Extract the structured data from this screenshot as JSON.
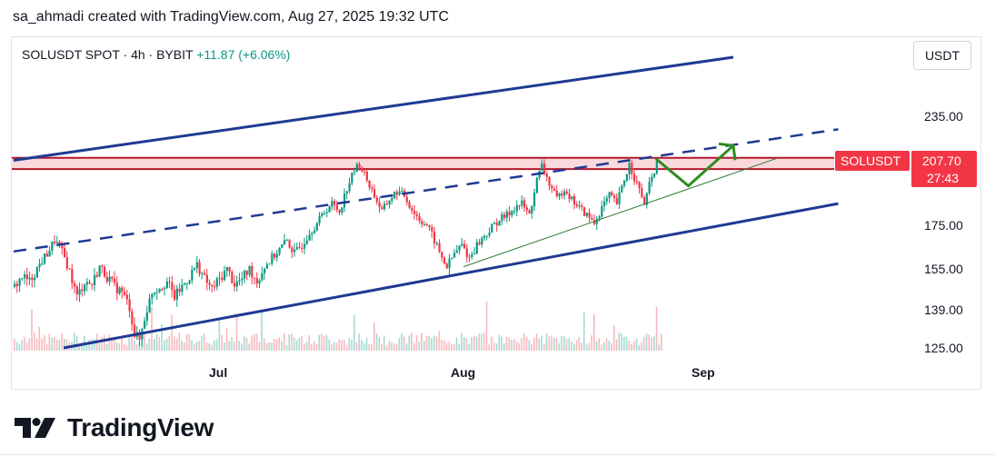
{
  "header": {
    "attribution": "sa_ahmadi created with TradingView.com, Aug 27, 2025 19:32 UTC"
  },
  "legend": {
    "symbol": "SOLUSDT SPOT · 4h · BYBIT",
    "change": "+11.87 (+6.06%)"
  },
  "currency_button": "USDT",
  "price_tag": {
    "symbol": "SOLUSDT",
    "price": "207.70",
    "countdown": "27:43"
  },
  "branding": {
    "wordmark": "TradingView"
  },
  "colors": {
    "channel": "#1f3a93",
    "resistance": "#b2182b",
    "resistance_fill": "#f9d9dc",
    "support_trend": "#2e7d32",
    "projection": "#2e8b1f",
    "up_candle": "#089981",
    "down_candle": "#f23645",
    "tag_bg": "#f23645"
  },
  "chart_data": {
    "type": "candlestick",
    "symbol": "SOLUSDT",
    "interval": "4h",
    "exchange": "BYBIT",
    "y_ticks": [
      235,
      175,
      155,
      139,
      125
    ],
    "y_tick_labels": [
      "235.00",
      "175.00",
      "155.00",
      "139.00",
      "125.00"
    ],
    "x_ticks": [
      "Jul",
      "Aug",
      "Sep"
    ],
    "price_path": [
      [
        0,
        148
      ],
      [
        3,
        152
      ],
      [
        6,
        150
      ],
      [
        10,
        157
      ],
      [
        13,
        162
      ],
      [
        16,
        168
      ],
      [
        18,
        165
      ],
      [
        20,
        160
      ],
      [
        22,
        154
      ],
      [
        25,
        144
      ],
      [
        28,
        150
      ],
      [
        31,
        149
      ],
      [
        34,
        156
      ],
      [
        37,
        152
      ],
      [
        40,
        148
      ],
      [
        43,
        146
      ],
      [
        46,
        140
      ],
      [
        48,
        130
      ],
      [
        50,
        128
      ],
      [
        52,
        136
      ],
      [
        55,
        146
      ],
      [
        58,
        148
      ],
      [
        61,
        150
      ],
      [
        64,
        144
      ],
      [
        67,
        148
      ],
      [
        70,
        152
      ],
      [
        73,
        157
      ],
      [
        76,
        151
      ],
      [
        79,
        147
      ],
      [
        82,
        151
      ],
      [
        85,
        155
      ],
      [
        88,
        149
      ],
      [
        91,
        151
      ],
      [
        94,
        155
      ],
      [
        97,
        150
      ],
      [
        100,
        156
      ],
      [
        103,
        160
      ],
      [
        106,
        164
      ],
      [
        109,
        168
      ],
      [
        112,
        162
      ],
      [
        115,
        166
      ],
      [
        118,
        172
      ],
      [
        121,
        176
      ],
      [
        124,
        182
      ],
      [
        127,
        186
      ],
      [
        130,
        182
      ],
      [
        133,
        194
      ],
      [
        136,
        203
      ],
      [
        138,
        206
      ],
      [
        141,
        198
      ],
      [
        144,
        190
      ],
      [
        147,
        182
      ],
      [
        150,
        188
      ],
      [
        153,
        192
      ],
      [
        156,
        190
      ],
      [
        159,
        183
      ],
      [
        162,
        178
      ],
      [
        165,
        175
      ],
      [
        168,
        168
      ],
      [
        171,
        160
      ],
      [
        173,
        156
      ],
      [
        176,
        162
      ],
      [
        179,
        166
      ],
      [
        182,
        160
      ],
      [
        185,
        166
      ],
      [
        188,
        170
      ],
      [
        191,
        174
      ],
      [
        194,
        178
      ],
      [
        197,
        180
      ],
      [
        200,
        184
      ],
      [
        203,
        186
      ],
      [
        206,
        180
      ],
      [
        209,
        198
      ],
      [
        211,
        205
      ],
      [
        214,
        196
      ],
      [
        217,
        188
      ],
      [
        220,
        194
      ],
      [
        223,
        188
      ],
      [
        226,
        184
      ],
      [
        229,
        180
      ],
      [
        232,
        176
      ],
      [
        235,
        184
      ],
      [
        238,
        190
      ],
      [
        241,
        186
      ],
      [
        244,
        198
      ],
      [
        246,
        206
      ],
      [
        249,
        196
      ],
      [
        252,
        186
      ],
      [
        254,
        195
      ],
      [
        257,
        207
      ]
    ],
    "price_range": [
      115,
      265
    ],
    "x_total": 400,
    "annotations": [
      {
        "kind": "channel_upper",
        "from": [
          0,
          208
        ],
        "to": [
          288,
          268
        ]
      },
      {
        "kind": "channel_lower",
        "from": [
          20,
          125
        ],
        "to": [
          330,
          186
        ]
      },
      {
        "kind": "channel_mid_dashed",
        "from": [
          0,
          163
        ],
        "to": [
          330,
          227
        ]
      },
      {
        "kind": "resistance_top",
        "price": 209.5
      },
      {
        "kind": "resistance_bottom",
        "price": 203.5
      },
      {
        "kind": "support_trendline",
        "from": [
          180,
          156
        ],
        "to": [
          305,
          209
        ]
      },
      {
        "kind": "projection_path",
        "points": [
          [
            257,
            209
          ],
          [
            270,
            195
          ],
          [
            288,
            217
          ]
        ]
      }
    ]
  }
}
